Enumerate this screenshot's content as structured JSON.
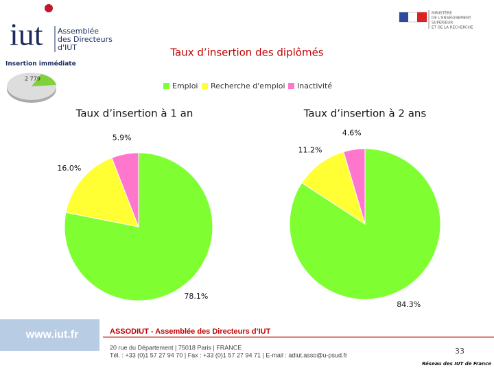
{
  "header": {
    "logo": "iut",
    "logo_text": [
      "Assemblée",
      "des Directeurs",
      "d'IUT"
    ],
    "badge_title": "Insertion immédiate",
    "badge_value": "2 779",
    "ministry": [
      "MINISTÈRE",
      "DE L'ENSEIGNEMENT",
      "SUPÉRIEUR",
      "ET DE LA RECHERCHE"
    ]
  },
  "chart_data": {
    "type": "pie",
    "title": "Taux d’insertion des diplômés",
    "categories": [
      "Emploi",
      "Recherche d'emploi",
      "Inactivité"
    ],
    "colors": [
      "#7fff32",
      "#ffff33",
      "#ff77cc"
    ],
    "series": [
      {
        "name": "Taux d’insertion à 1 an",
        "values": [
          78.1,
          16.0,
          5.9
        ],
        "value_labels": [
          "78.1%",
          "16.0%",
          "5.9%"
        ]
      },
      {
        "name": "Taux d’insertion à 2 ans",
        "values": [
          84.3,
          11.2,
          4.6
        ],
        "value_labels": [
          "84.3%",
          "11.2%",
          "4.6%"
        ]
      }
    ]
  },
  "footer": {
    "site": "www.iut.fr",
    "org": "ASSODIUT - Assemblée des Directeurs d’IUT",
    "address": "20 rue du Département | 75018 Paris | FRANCE",
    "contact": "Tél. : +33 (0)1 57 27 94 70 | Fax : +33 (0)1 57 27 94 71 | E-mail : adiut.asso@u-psud.fr",
    "page": "33",
    "network": "Réseau des IUT de France"
  }
}
